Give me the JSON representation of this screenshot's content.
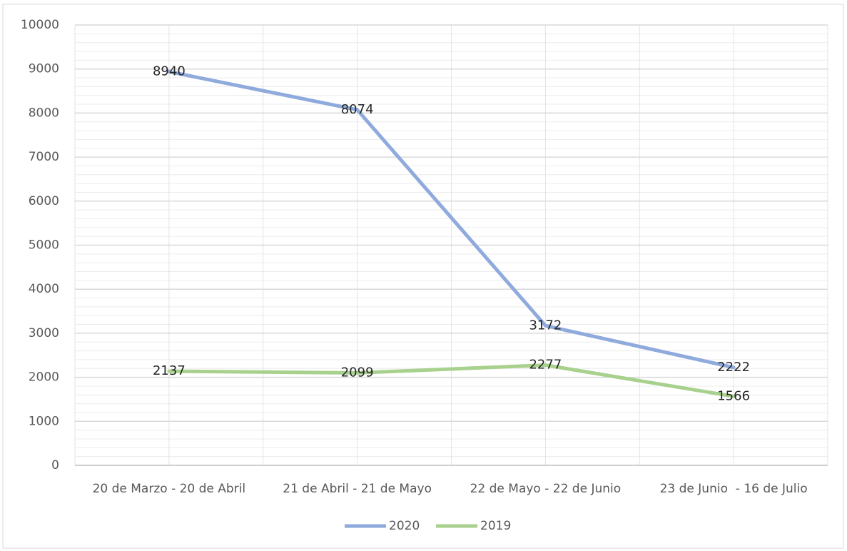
{
  "chart_data": {
    "type": "line",
    "categories": [
      "20 de Marzo - 20 de Abril",
      "21 de Abril - 21 de Mayo",
      "22 de Mayo - 22 de Junio",
      "23 de Junio  - 16 de Julio"
    ],
    "series": [
      {
        "name": "2020",
        "color": "#8faadc",
        "values": [
          8940,
          8074,
          3172,
          2222
        ]
      },
      {
        "name": "2019",
        "color": "#a9d18e",
        "values": [
          2137,
          2099,
          2277,
          1566
        ]
      }
    ],
    "ylim": [
      0,
      10000
    ],
    "yticks": [
      0,
      1000,
      2000,
      3000,
      4000,
      5000,
      6000,
      7000,
      8000,
      9000,
      10000
    ],
    "grid": true,
    "minor_grid": true,
    "legend": "bottom"
  }
}
